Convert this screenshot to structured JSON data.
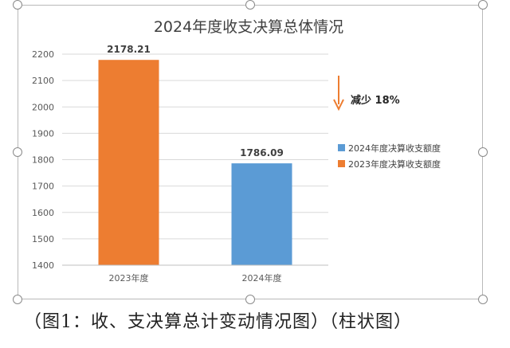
{
  "chart_data": {
    "type": "bar",
    "title": "2024年度收支决算总体情况",
    "categories": [
      "2023年度",
      "2024年度"
    ],
    "series": [
      {
        "name": "2023年度决算收支额度",
        "color": "#ED7D31",
        "values": [
          2178.21,
          null
        ]
      },
      {
        "name": "2024年度决算收支额度",
        "color": "#5B9BD5",
        "values": [
          null,
          1786.09
        ]
      }
    ],
    "data_labels": [
      "2178.21",
      "1786.09"
    ],
    "ylim": [
      1400,
      2200
    ],
    "yticks": [
      1400,
      1500,
      1600,
      1700,
      1800,
      1900,
      2000,
      2100,
      2200
    ],
    "grid": true,
    "legend_position": "right",
    "annotation": {
      "text": "减少 18%",
      "arrow": "down",
      "color": "#ED7D31"
    }
  },
  "caption": "（图1：收、支决算总计变动情况图）（柱状图）"
}
